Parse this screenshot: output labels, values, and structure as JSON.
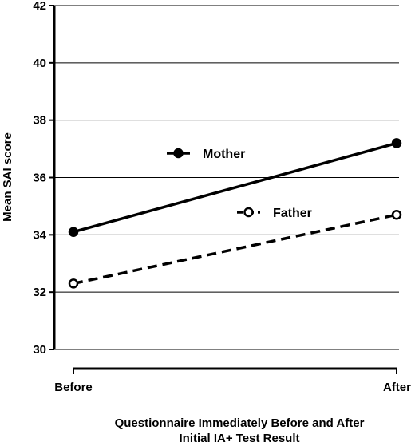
{
  "chart_data": {
    "type": "line",
    "title": "",
    "xlabel": "Questionnaire Immediately Before and After Initial IA+ Test Result",
    "xlabel_lines": [
      "Questionnaire Immediately Before and After",
      "Initial IA+ Test Result"
    ],
    "ylabel": "Mean SAI score",
    "categories": [
      "Before",
      "After"
    ],
    "ylim": [
      30,
      42
    ],
    "yticks": [
      30,
      32,
      34,
      36,
      38,
      40,
      42
    ],
    "grid": "horizontal",
    "legend_placement": "inline-center",
    "series": [
      {
        "name": "Mother",
        "values": [
          34.1,
          37.2
        ],
        "line_style": "solid",
        "marker": "filled-circle",
        "color": "#000000"
      },
      {
        "name": "Father",
        "values": [
          32.3,
          34.7
        ],
        "line_style": "dashed",
        "marker": "open-circle",
        "color": "#000000"
      }
    ]
  }
}
